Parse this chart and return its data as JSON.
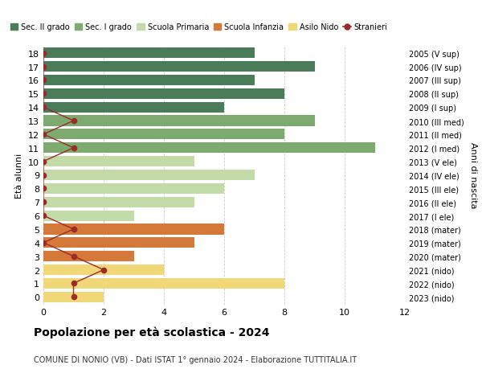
{
  "ages": [
    18,
    17,
    16,
    15,
    14,
    13,
    12,
    11,
    10,
    9,
    8,
    7,
    6,
    5,
    4,
    3,
    2,
    1,
    0
  ],
  "years": [
    "2005 (V sup)",
    "2006 (IV sup)",
    "2007 (III sup)",
    "2008 (II sup)",
    "2009 (I sup)",
    "2010 (III med)",
    "2011 (II med)",
    "2012 (I med)",
    "2013 (V ele)",
    "2014 (IV ele)",
    "2015 (III ele)",
    "2016 (II ele)",
    "2017 (I ele)",
    "2018 (mater)",
    "2019 (mater)",
    "2020 (mater)",
    "2021 (nido)",
    "2022 (nido)",
    "2023 (nido)"
  ],
  "values": [
    7,
    9,
    7,
    8,
    6,
    9,
    8,
    11,
    5,
    7,
    6,
    5,
    3,
    6,
    5,
    3,
    4,
    8,
    2
  ],
  "bar_colors": [
    "#4a7c59",
    "#4a7c59",
    "#4a7c59",
    "#4a7c59",
    "#4a7c59",
    "#7daa6e",
    "#7daa6e",
    "#7daa6e",
    "#c2dba8",
    "#c2dba8",
    "#c2dba8",
    "#c2dba8",
    "#c2dba8",
    "#d4793a",
    "#d4793a",
    "#d4793a",
    "#f0d878",
    "#f0d878",
    "#f0d878"
  ],
  "stranieri_ages": [
    18,
    17,
    16,
    15,
    14,
    13,
    12,
    11,
    10,
    9,
    8,
    7,
    6,
    5,
    4,
    3,
    2,
    1,
    0
  ],
  "stranieri_x": [
    0,
    0,
    0,
    0,
    0,
    1,
    0,
    1,
    0,
    0,
    0,
    0,
    0,
    1,
    0,
    1,
    2,
    1,
    1
  ],
  "stranieri_color": "#9b2a2a",
  "legend_labels": [
    "Sec. II grado",
    "Sec. I grado",
    "Scuola Primaria",
    "Scuola Infanzia",
    "Asilo Nido",
    "Stranieri"
  ],
  "legend_colors": [
    "#4a7c59",
    "#7daa6e",
    "#c2dba8",
    "#d4793a",
    "#f0d878",
    "#9b2a2a"
  ],
  "title": "Popolazione per età scolastica - 2024",
  "subtitle": "COMUNE DI NONIO (VB) - Dati ISTAT 1° gennaio 2024 - Elaborazione TUTTITALIA.IT",
  "ylabel_left": "Età alunni",
  "ylabel_right": "Anni di nascita",
  "xlim": [
    0,
    12
  ],
  "ylim_min": -0.55,
  "ylim_max": 18.55,
  "background_color": "#ffffff",
  "grid_color": "#cccccc"
}
